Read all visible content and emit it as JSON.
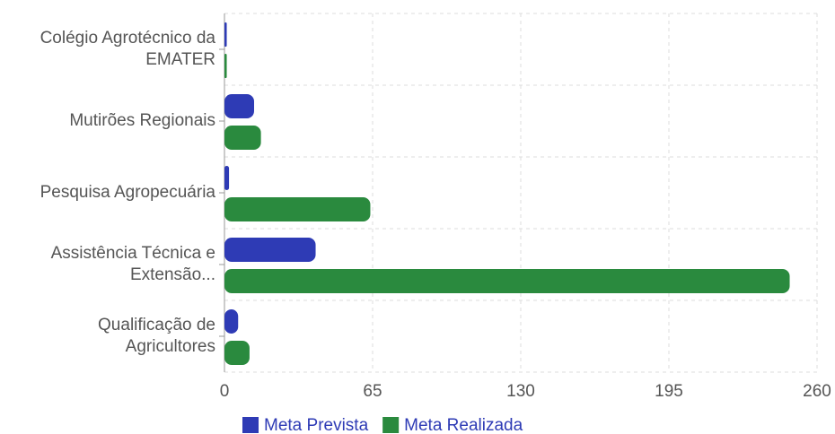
{
  "chart_data": {
    "type": "hbar",
    "categories": [
      "Colégio Agrotécnico da EMATER",
      "Mutirões Regionais",
      "Pesquisa Agropecuária",
      "Assistência Técnica e Extensão...",
      "Qualificação de Agricultores"
    ],
    "series": [
      {
        "name": "Meta Prevista",
        "color": "#2e3bb5",
        "values": [
          1,
          13,
          2,
          40,
          6
        ]
      },
      {
        "name": "Meta Realizada",
        "color": "#2a8a3e",
        "values": [
          1,
          16,
          64,
          248,
          11
        ]
      }
    ],
    "xlim": [
      0,
      260
    ],
    "xticks": [
      0,
      65,
      130,
      195,
      260
    ],
    "grid": true,
    "legend": "bottom"
  }
}
